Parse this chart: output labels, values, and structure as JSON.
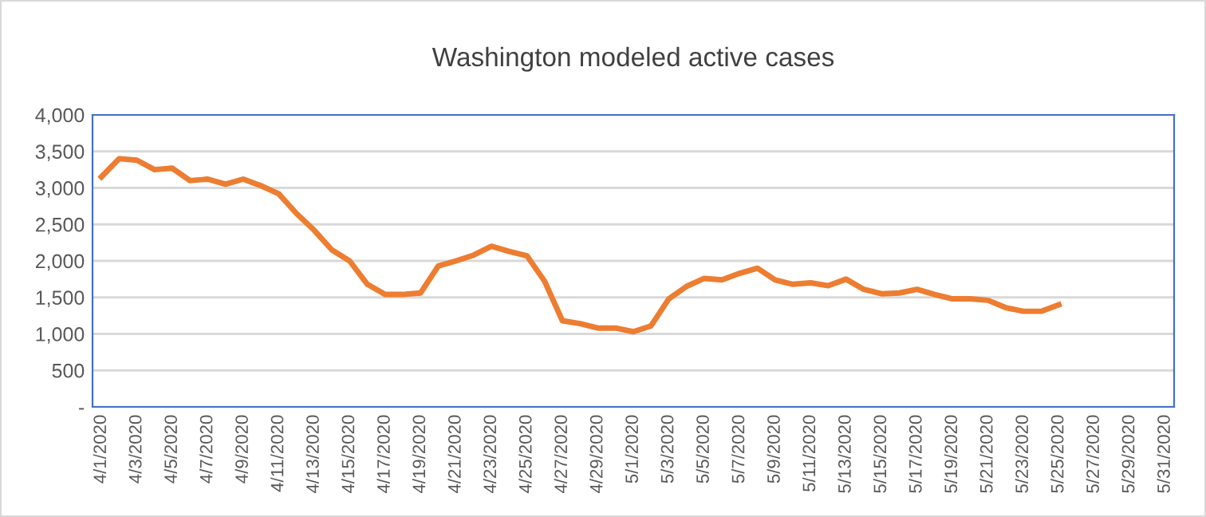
{
  "chart_data": {
    "type": "line",
    "title": "Washington modeled active cases",
    "categories": [
      "4/1/2020",
      null,
      "4/3/2020",
      null,
      "4/5/2020",
      null,
      "4/7/2020",
      null,
      "4/9/2020",
      null,
      "4/11/2020",
      null,
      "4/13/2020",
      null,
      "4/15/2020",
      null,
      "4/17/2020",
      null,
      "4/19/2020",
      null,
      "4/21/2020",
      null,
      "4/23/2020",
      null,
      "4/25/2020",
      null,
      "4/27/2020",
      null,
      "4/29/2020",
      null,
      "5/1/2020",
      null,
      "5/3/2020",
      null,
      "5/5/2020",
      null,
      "5/7/2020",
      null,
      "5/9/2020",
      null,
      "5/11/2020",
      null,
      "5/13/2020",
      null,
      "5/15/2020",
      null,
      "5/17/2020",
      null,
      "5/19/2020",
      null,
      "5/21/2020",
      null,
      "5/23/2020",
      null,
      "5/25/2020",
      null,
      "5/27/2020",
      null,
      "5/29/2020",
      null,
      "5/31/2020"
    ],
    "series": [
      {
        "color": "#ed7d31",
        "values": [
          3150,
          3400,
          3380,
          3250,
          3270,
          3100,
          3120,
          3050,
          3120,
          3030,
          2920,
          2650,
          2420,
          2150,
          2000,
          1680,
          1540,
          1540,
          1560,
          1930,
          2000,
          2080,
          2200,
          2130,
          2070,
          1720,
          1180,
          1140,
          1080,
          1080,
          1030,
          1110,
          1480,
          1650,
          1760,
          1740,
          1830,
          1900,
          1740,
          1680,
          1700,
          1660,
          1750,
          1610,
          1550,
          1560,
          1610,
          1540,
          1480,
          1480,
          1460,
          1360,
          1310,
          1310,
          1400,
          null,
          null,
          null,
          null,
          null,
          null
        ]
      }
    ],
    "ylim": [
      0,
      4000
    ],
    "yticks": [
      {
        "value": 0,
        "label": "-"
      },
      {
        "value": 500,
        "label": "500"
      },
      {
        "value": 1000,
        "label": "1,000"
      },
      {
        "value": 1500,
        "label": "1,500"
      },
      {
        "value": 2000,
        "label": "2,000"
      },
      {
        "value": 2500,
        "label": "2,500"
      },
      {
        "value": 3000,
        "label": "3,000"
      },
      {
        "value": 3500,
        "label": "3,500"
      },
      {
        "value": 4000,
        "label": "4,000"
      }
    ],
    "grid": "y",
    "marker": "none",
    "line_style": "solid"
  }
}
